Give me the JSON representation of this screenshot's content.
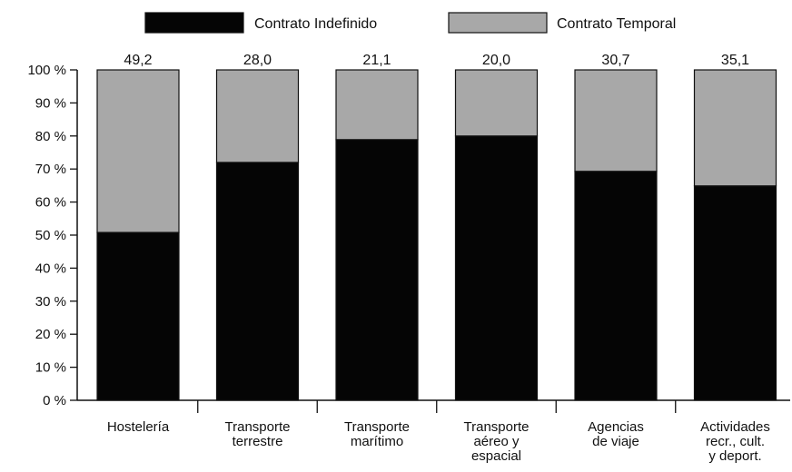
{
  "chart_data": {
    "type": "bar",
    "stacked": true,
    "normalized": true,
    "categories": [
      [
        "Hostelería"
      ],
      [
        "Transporte",
        "terrestre"
      ],
      [
        "Transporte",
        "marítimo"
      ],
      [
        "Transporte",
        "aéreo y",
        "espacial"
      ],
      [
        "Agencias",
        "de viaje"
      ],
      [
        "Actividades",
        "recr., cult.",
        "y deport."
      ]
    ],
    "series": [
      {
        "name": "Contrato Indefinido",
        "values": [
          50.8,
          72.0,
          78.9,
          80.0,
          69.3,
          64.9
        ],
        "color": "#050505"
      },
      {
        "name": "Contrato Temporal",
        "values": [
          49.2,
          28.0,
          21.1,
          20.0,
          30.7,
          35.1
        ],
        "color": "#a8a8a8"
      }
    ],
    "top_labels": [
      "49,2",
      "28,0",
      "21,1",
      "20,0",
      "30,7",
      "35,1"
    ],
    "y_ticks": [
      "0 %",
      "10 %",
      "20 %",
      "30 %",
      "40 %",
      "50 %",
      "60 %",
      "70 %",
      "80 %",
      "90 %",
      "100 %"
    ],
    "ylim": [
      0,
      100
    ],
    "grid": false,
    "legend_position": "top"
  }
}
